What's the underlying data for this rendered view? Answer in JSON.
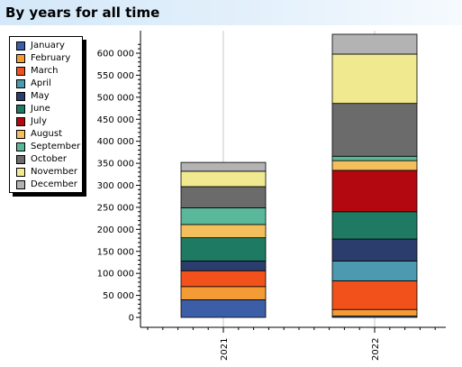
{
  "header": {
    "title": "By years for all time"
  },
  "chart_data": {
    "type": "bar",
    "stacked": true,
    "categories": [
      "2021",
      "2022"
    ],
    "series": [
      {
        "name": "January",
        "color": "#3b5ea6",
        "values": [
          40000,
          3000
        ]
      },
      {
        "name": "February",
        "color": "#f39b34",
        "values": [
          30000,
          15000
        ]
      },
      {
        "name": "March",
        "color": "#f2511b",
        "values": [
          36000,
          65000
        ]
      },
      {
        "name": "April",
        "color": "#4b9aaf",
        "values": [
          0,
          45000
        ]
      },
      {
        "name": "May",
        "color": "#2b3d6d",
        "values": [
          22000,
          50000
        ]
      },
      {
        "name": "June",
        "color": "#1f7a63",
        "values": [
          53000,
          62000
        ]
      },
      {
        "name": "July",
        "color": "#b3080f",
        "values": [
          0,
          94000
        ]
      },
      {
        "name": "August",
        "color": "#f2bf5c",
        "values": [
          30000,
          22000
        ]
      },
      {
        "name": "September",
        "color": "#5ab89a",
        "values": [
          38000,
          10000
        ]
      },
      {
        "name": "October",
        "color": "#6b6b6b",
        "values": [
          48000,
          120000
        ]
      },
      {
        "name": "November",
        "color": "#f1e98f",
        "values": [
          35000,
          112000
        ]
      },
      {
        "name": "December",
        "color": "#b3b3b3",
        "values": [
          20000,
          45000
        ]
      }
    ],
    "yticks": [
      "0",
      "50 000",
      "100 000",
      "150 000",
      "200 000",
      "250 000",
      "300 000",
      "350 000",
      "400 000",
      "450 000",
      "500 000",
      "550 000",
      "600 000"
    ],
    "ylim": [
      0,
      630000
    ],
    "grid": true,
    "legend_position": "left"
  }
}
